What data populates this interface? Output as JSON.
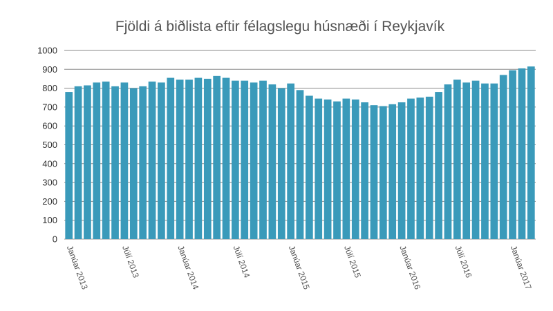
{
  "chart_data": {
    "type": "bar",
    "title": "Fjöldi á biðlista eftir félagslegu húsnæði í Reykjavík",
    "xlabel": "",
    "ylabel": "",
    "ylim": [
      0,
      1000
    ],
    "yticks": [
      0,
      100,
      200,
      300,
      400,
      500,
      600,
      700,
      800,
      900,
      1000
    ],
    "grid": true,
    "legend": "none",
    "bar_color": "#3a9aba",
    "x_tick_labels": [
      {
        "index": 0,
        "label": "Janúar 2013"
      },
      {
        "index": 6,
        "label": "Júlí 2013"
      },
      {
        "index": 12,
        "label": "Janúar 2014"
      },
      {
        "index": 18,
        "label": "Júlí 2014"
      },
      {
        "index": 24,
        "label": "Janúar 2015"
      },
      {
        "index": 30,
        "label": "Júlí 2015"
      },
      {
        "index": 36,
        "label": "Janúar 2016"
      },
      {
        "index": 42,
        "label": "Júlí 2016"
      },
      {
        "index": 48,
        "label": "Janúar 2017"
      }
    ],
    "values": [
      780,
      810,
      815,
      830,
      835,
      810,
      830,
      800,
      810,
      835,
      830,
      855,
      845,
      845,
      855,
      850,
      865,
      855,
      840,
      840,
      830,
      840,
      820,
      800,
      825,
      790,
      760,
      745,
      740,
      730,
      745,
      740,
      725,
      710,
      705,
      715,
      725,
      745,
      750,
      755,
      780,
      820,
      845,
      830,
      840,
      825,
      825,
      870,
      895,
      905,
      915
    ]
  }
}
